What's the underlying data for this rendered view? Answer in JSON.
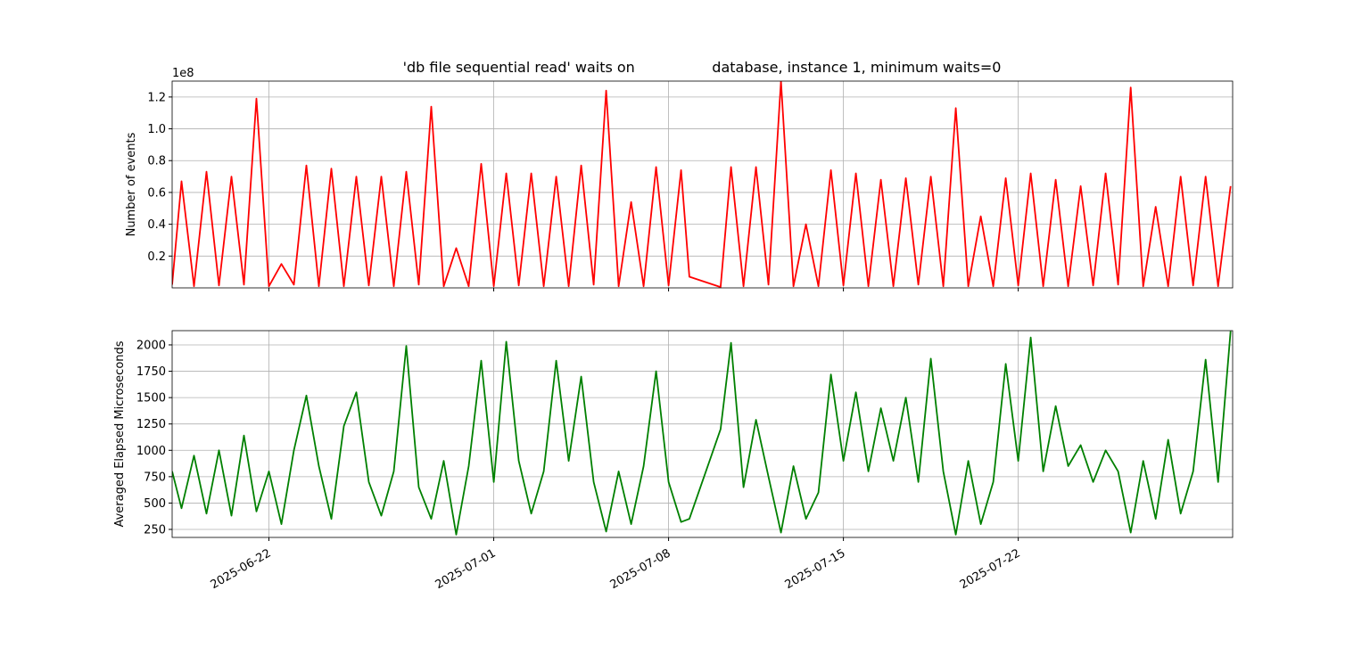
{
  "chart_data": [
    {
      "type": "line",
      "title": "'db file sequential read' waits on                 database, instance 1, minimum waits=0",
      "ylabel": "Number of events",
      "y_offset_label": "1e8",
      "color": "#ff0000",
      "grid": true,
      "x": [
        "2025-06-18T03:00",
        "2025-06-18T12:00",
        "2025-06-19T00:00",
        "2025-06-19T12:00",
        "2025-06-20T00:00",
        "2025-06-20T12:00",
        "2025-06-21T00:00",
        "2025-06-21T12:00",
        "2025-06-22T00:00",
        "2025-06-22T12:00",
        "2025-06-23T00:00",
        "2025-06-23T12:00",
        "2025-06-24T00:00",
        "2025-06-24T12:00",
        "2025-06-25T00:00",
        "2025-06-25T12:00",
        "2025-06-26T00:00",
        "2025-06-26T12:00",
        "2025-06-27T00:00",
        "2025-06-27T12:00",
        "2025-06-28T00:00",
        "2025-06-28T12:00",
        "2025-06-29T00:00",
        "2025-06-29T12:00",
        "2025-06-30T00:00",
        "2025-06-30T12:00",
        "2025-07-01T00:00",
        "2025-07-01T12:00",
        "2025-07-02T00:00",
        "2025-07-02T12:00",
        "2025-07-03T00:00",
        "2025-07-03T12:00",
        "2025-07-04T00:00",
        "2025-07-04T12:00",
        "2025-07-05T00:00",
        "2025-07-05T12:00",
        "2025-07-06T00:00",
        "2025-07-06T12:00",
        "2025-07-07T00:00",
        "2025-07-07T12:00",
        "2025-07-08T00:00",
        "2025-07-08T12:00",
        "2025-07-08T20:00",
        "2025-07-10T02:00",
        "2025-07-10T12:00",
        "2025-07-11T00:00",
        "2025-07-11T12:00",
        "2025-07-12T00:00",
        "2025-07-12T12:00",
        "2025-07-13T00:00",
        "2025-07-13T12:00",
        "2025-07-14T00:00",
        "2025-07-14T12:00",
        "2025-07-15T00:00",
        "2025-07-15T12:00",
        "2025-07-16T00:00",
        "2025-07-16T12:00",
        "2025-07-17T00:00",
        "2025-07-17T12:00",
        "2025-07-18T00:00",
        "2025-07-18T12:00",
        "2025-07-19T00:00",
        "2025-07-19T12:00",
        "2025-07-20T00:00",
        "2025-07-20T12:00",
        "2025-07-21T00:00",
        "2025-07-21T12:00",
        "2025-07-22T00:00",
        "2025-07-22T12:00",
        "2025-07-23T00:00",
        "2025-07-23T12:00",
        "2025-07-24T00:00",
        "2025-07-24T12:00",
        "2025-07-25T00:00",
        "2025-07-25T12:00",
        "2025-07-26T00:00",
        "2025-07-26T12:00",
        "2025-07-27T00:00",
        "2025-07-27T12:00",
        "2025-07-28T00:00",
        "2025-07-28T12:00",
        "2025-07-29T00:00",
        "2025-07-29T12:00",
        "2025-07-30T00:00",
        "2025-07-30T12:00"
      ],
      "values": [
        2000000,
        67000000,
        1000000,
        73000000,
        1500000,
        70000000,
        2000000,
        119000000,
        1000000,
        15000000,
        2000000,
        77000000,
        1000000,
        75000000,
        1000000,
        70000000,
        1500000,
        70000000,
        1000000,
        73000000,
        2000000,
        114000000,
        1000000,
        25000000,
        1000000,
        78000000,
        1000000,
        72000000,
        1500000,
        72000000,
        1000000,
        70000000,
        1000000,
        77000000,
        2000000,
        124000000,
        1000000,
        54000000,
        1000000,
        76000000,
        1500000,
        74000000,
        7000000,
        500000,
        76000000,
        1000000,
        76000000,
        2000000,
        130000000,
        1000000,
        40000000,
        1000000,
        74000000,
        1500000,
        72000000,
        1000000,
        68000000,
        1000000,
        69000000,
        2000000,
        70000000,
        1000000,
        113000000,
        1000000,
        45000000,
        1000000,
        69000000,
        1500000,
        72000000,
        1000000,
        68000000,
        1000000,
        64000000,
        1500000,
        72000000,
        2000000,
        126000000,
        1000000,
        51000000,
        1000000,
        70000000,
        1500000,
        70000000,
        1000000,
        64000000
      ],
      "xlim": [
        "2025-06-18T03:00",
        "2025-07-30T14:00"
      ],
      "xticks": [
        "2025-06-22",
        "2025-07-01",
        "2025-07-08",
        "2025-07-15",
        "2025-07-22"
      ],
      "ylim": [
        0,
        130000000
      ],
      "yticks": [
        {
          "value": 20000000,
          "label": "0.2"
        },
        {
          "value": 40000000,
          "label": "0.4"
        },
        {
          "value": 60000000,
          "label": "0.6"
        },
        {
          "value": 80000000,
          "label": "0.8"
        },
        {
          "value": 100000000,
          "label": "1.0"
        },
        {
          "value": 120000000,
          "label": "1.2"
        }
      ]
    },
    {
      "type": "line",
      "ylabel": "Averaged Elapsed Microseconds",
      "color": "#008000",
      "grid": true,
      "x": [
        "2025-06-18T03:00",
        "2025-06-18T12:00",
        "2025-06-19T00:00",
        "2025-06-19T12:00",
        "2025-06-20T00:00",
        "2025-06-20T12:00",
        "2025-06-21T00:00",
        "2025-06-21T12:00",
        "2025-06-22T00:00",
        "2025-06-22T12:00",
        "2025-06-23T00:00",
        "2025-06-23T12:00",
        "2025-06-24T00:00",
        "2025-06-24T12:00",
        "2025-06-25T00:00",
        "2025-06-25T12:00",
        "2025-06-26T00:00",
        "2025-06-26T12:00",
        "2025-06-27T00:00",
        "2025-06-27T12:00",
        "2025-06-28T00:00",
        "2025-06-28T12:00",
        "2025-06-29T00:00",
        "2025-06-29T12:00",
        "2025-06-30T00:00",
        "2025-06-30T12:00",
        "2025-07-01T00:00",
        "2025-07-01T12:00",
        "2025-07-02T00:00",
        "2025-07-02T12:00",
        "2025-07-03T00:00",
        "2025-07-03T12:00",
        "2025-07-04T00:00",
        "2025-07-04T12:00",
        "2025-07-05T00:00",
        "2025-07-05T12:00",
        "2025-07-06T00:00",
        "2025-07-06T12:00",
        "2025-07-07T00:00",
        "2025-07-07T12:00",
        "2025-07-08T00:00",
        "2025-07-08T12:00",
        "2025-07-08T20:00",
        "2025-07-10T02:00",
        "2025-07-10T12:00",
        "2025-07-11T00:00",
        "2025-07-11T12:00",
        "2025-07-12T00:00",
        "2025-07-12T12:00",
        "2025-07-13T00:00",
        "2025-07-13T12:00",
        "2025-07-14T00:00",
        "2025-07-14T12:00",
        "2025-07-15T00:00",
        "2025-07-15T12:00",
        "2025-07-16T00:00",
        "2025-07-16T12:00",
        "2025-07-17T00:00",
        "2025-07-17T12:00",
        "2025-07-18T00:00",
        "2025-07-18T12:00",
        "2025-07-19T00:00",
        "2025-07-19T12:00",
        "2025-07-20T00:00",
        "2025-07-20T12:00",
        "2025-07-21T00:00",
        "2025-07-21T12:00",
        "2025-07-22T00:00",
        "2025-07-22T12:00",
        "2025-07-23T00:00",
        "2025-07-23T12:00",
        "2025-07-24T00:00",
        "2025-07-24T12:00",
        "2025-07-25T00:00",
        "2025-07-25T12:00",
        "2025-07-26T00:00",
        "2025-07-26T12:00",
        "2025-07-27T00:00",
        "2025-07-27T12:00",
        "2025-07-28T00:00",
        "2025-07-28T12:00",
        "2025-07-29T00:00",
        "2025-07-29T12:00",
        "2025-07-30T00:00",
        "2025-07-30T12:00"
      ],
      "values": [
        800,
        450,
        950,
        400,
        1000,
        380,
        1140,
        420,
        800,
        300,
        1000,
        1520,
        850,
        350,
        1230,
        1550,
        700,
        380,
        800,
        1990,
        650,
        350,
        900,
        200,
        850,
        1850,
        700,
        2030,
        900,
        400,
        800,
        1850,
        900,
        1700,
        700,
        230,
        800,
        300,
        850,
        1750,
        700,
        320,
        350,
        1200,
        2020,
        650,
        1290,
        750,
        220,
        850,
        350,
        600,
        1720,
        900,
        1550,
        800,
        1400,
        900,
        1500,
        700,
        1870,
        800,
        200,
        900,
        300,
        700,
        1820,
        900,
        2070,
        800,
        1420,
        850,
        1050,
        700,
        1000,
        800,
        220,
        900,
        350,
        1100,
        400,
        800,
        1860,
        700,
        2130
      ],
      "xlim": [
        "2025-06-18T03:00",
        "2025-07-30T14:00"
      ],
      "xticks": [
        "2025-06-22",
        "2025-07-01",
        "2025-07-08",
        "2025-07-15",
        "2025-07-22"
      ],
      "ylim": [
        174,
        2135
      ],
      "yticks": [
        250,
        500,
        750,
        1000,
        1250,
        1500,
        1750,
        2000
      ]
    }
  ]
}
